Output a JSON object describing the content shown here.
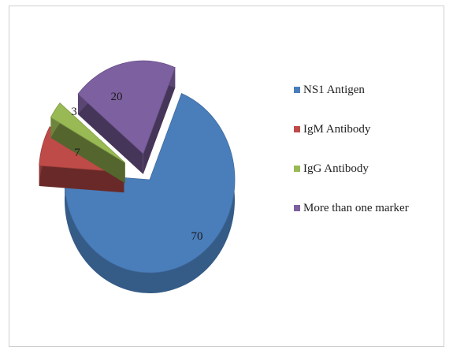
{
  "chart_data": {
    "type": "pie",
    "style": "3d-exploded",
    "title": "",
    "categories": [
      "NS1 Antigen",
      "IgM Antibody",
      "IgG Antibody",
      "More than one marker"
    ],
    "values": [
      70,
      7,
      3,
      20
    ],
    "data_labels": [
      "70",
      "7",
      "3",
      "20"
    ],
    "colors": [
      "#4a7ebb",
      "#be4b48",
      "#98b954",
      "#7d60a0"
    ],
    "legend": {
      "position": "right",
      "entries": [
        "NS1 Antigen",
        "IgM Antibody",
        "IgG Antibody",
        "More than one marker"
      ]
    }
  }
}
